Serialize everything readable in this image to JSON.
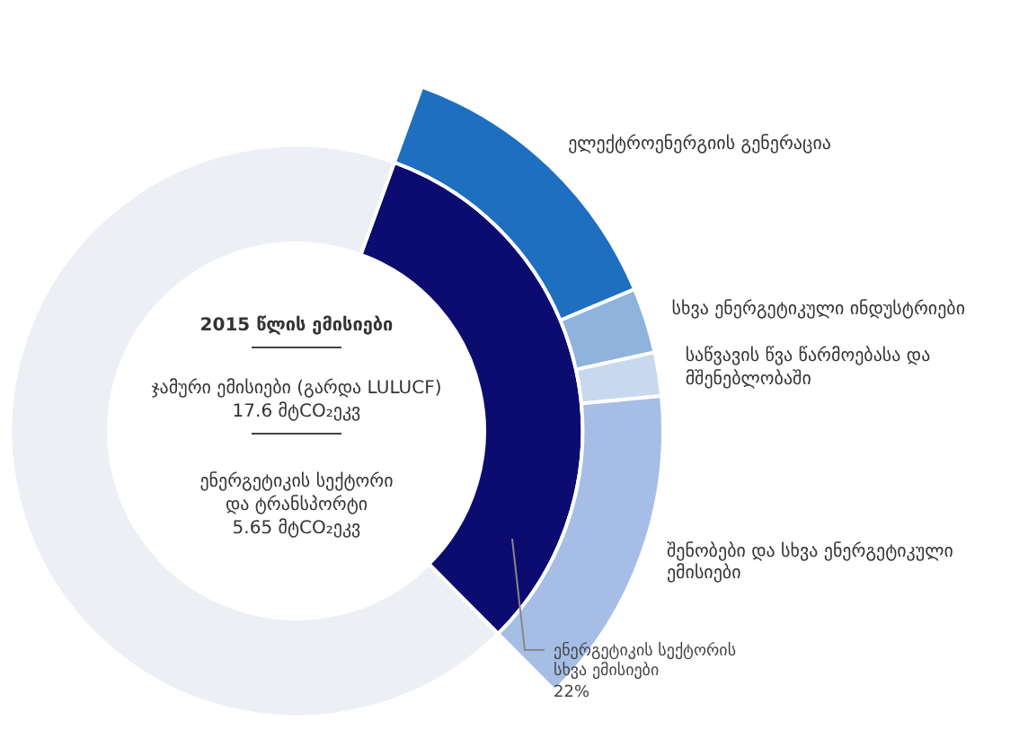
{
  "chart_data": {
    "type": "donut",
    "title": "2015 წლის ემისიები",
    "categories": [
      "ელექტროენერგიის გენერაცია",
      "სხვა ენერგეტიკული ინდუსტრიები",
      "საწვავის წვა წარმოებასა და მშენებლობაში",
      "შენობები და სხვა ენერგეტიკული ემისიები",
      null,
      null
    ],
    "series": [
      {
        "values": [
          41,
          9,
          6,
          44,
          null,
          null
        ],
        "colors": [
          "#1f6fc0",
          "#8fb3dc",
          "#c8d9ef",
          "#a6bee5",
          null,
          null
        ]
      },
      {
        "values": [
          null,
          null,
          null,
          null,
          32,
          68
        ],
        "colors": [
          null,
          null,
          null,
          null,
          "#0c0c70",
          "#eceff4"
        ]
      }
    ],
    "annotations": [
      "ჯამური ემისიები (გარდა LULUCF)\n17.6 მტCO₂ეკვ",
      "ენერგეტიკის სექტორი\nდა ტრანსპორტი\n5.65 მტCO₂ეკვ",
      "ენერგეტიკის სექტორის\nსხვა ემისიები\n22%"
    ]
  }
}
